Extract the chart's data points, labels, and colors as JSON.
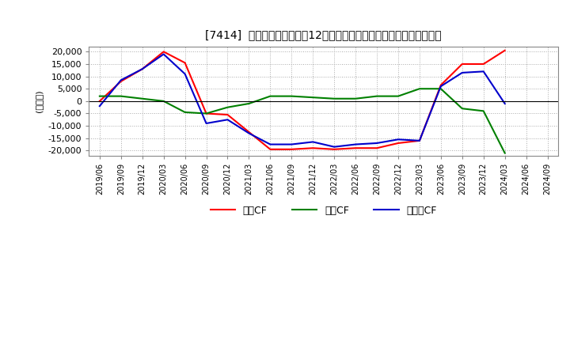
{
  "title": "[7414]  キャッシュフローの12か月移動合計の対前年同期増減額の推移",
  "ylabel": "(百万円)",
  "ylim": [
    -22000,
    22000
  ],
  "yticks": [
    -20000,
    -15000,
    -10000,
    -5000,
    0,
    5000,
    10000,
    15000,
    20000
  ],
  "legend_labels": [
    "営業CF",
    "投資CF",
    "フリーCF"
  ],
  "line_colors": [
    "#ff0000",
    "#008000",
    "#0000cc"
  ],
  "dates": [
    "2019/06",
    "2019/09",
    "2019/12",
    "2020/03",
    "2020/06",
    "2020/09",
    "2020/12",
    "2021/03",
    "2021/06",
    "2021/09",
    "2021/12",
    "2022/03",
    "2022/06",
    "2022/09",
    "2022/12",
    "2023/03",
    "2023/06",
    "2023/09",
    "2023/12",
    "2024/03",
    "2024/06",
    "2024/09"
  ],
  "operating_cf": [
    0,
    8000,
    13000,
    20000,
    15500,
    -5000,
    -5500,
    -12500,
    -19500,
    -19500,
    -19000,
    -19500,
    -19000,
    -19000,
    -17000,
    -16000,
    6500,
    15000,
    15000,
    20500,
    null,
    null
  ],
  "investing_cf": [
    2000,
    2000,
    1000,
    0,
    -4500,
    -5000,
    -2500,
    -1000,
    2000,
    2000,
    1500,
    1000,
    1000,
    2000,
    2000,
    5000,
    5000,
    -3000,
    -4000,
    -21000,
    null,
    null
  ],
  "free_cf": [
    -2000,
    8500,
    13000,
    19000,
    11000,
    -9000,
    -7500,
    -13000,
    -17500,
    -17500,
    -16500,
    -18500,
    -17500,
    -17000,
    -15500,
    -16000,
    6000,
    11500,
    12000,
    -1000,
    null,
    null
  ],
  "background_color": "#ffffff",
  "grid_color": "#aaaaaa"
}
